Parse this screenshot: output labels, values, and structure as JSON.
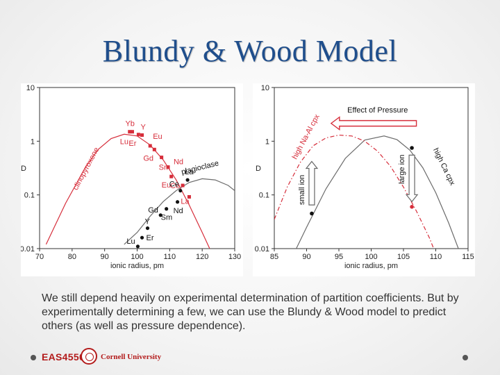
{
  "slide": {
    "title": "Blundy & Wood Model",
    "caption": "We still depend heavily on experimental determination of partition coefficients. But by experimentally determining a few, we can use the Blundy & Wood model to predict others (as well as pressure dependence).",
    "footer_course": "EAS4550",
    "footer_university": "Cornell University",
    "colors": {
      "title": "#1f4e8c",
      "accent_red": "#d62d3a",
      "curve_gray": "#6b6b6b",
      "footer_red": "#b31b1b"
    }
  },
  "chart_data": [
    {
      "type": "line",
      "xlabel": "ionic radius, pm",
      "ylabel": "D",
      "xlim": [
        70,
        130
      ],
      "ylim": [
        0.01,
        10
      ],
      "yscale": "log",
      "x_ticks": [
        "70",
        "80",
        "90",
        "100",
        "110",
        "120",
        "130"
      ],
      "y_ticks": [
        "10",
        "1",
        "0.1",
        "0.01"
      ],
      "series": [
        {
          "name": "clinopyroxene",
          "color": "#d62d3a",
          "curve": {
            "x": [
              72,
              78,
              84,
              88,
              92,
              96,
              100,
              104,
              108,
              112,
              116,
              120,
              124,
              125.5
            ],
            "y": [
              0.012,
              0.07,
              0.32,
              0.7,
              1.12,
              1.35,
              1.25,
              0.85,
              0.45,
              0.19,
              0.065,
              0.02,
              0.006,
              0.004
            ]
          },
          "points": [
            {
              "label": "Lu",
              "x": 97.7,
              "y": 1.5
            },
            {
              "label": "Yb",
              "x": 98.5,
              "y": 1.5
            },
            {
              "label": "Er",
              "x": 100.4,
              "y": 1.33
            },
            {
              "label": "Y",
              "x": 101.5,
              "y": 1.3
            },
            {
              "label": "Eu",
              "x": 104,
              "y": 0.82
            },
            {
              "label": "Gd",
              "x": 105.3,
              "y": 0.7
            },
            {
              "label": "Sm",
              "x": 107.5,
              "y": 0.5
            },
            {
              "label": "Nd",
              "x": 109.5,
              "y": 0.33
            },
            {
              "label": "Eu",
              "x": 110.5,
              "y": 0.22
            },
            {
              "label": "Ce",
              "x": 114,
              "y": 0.15
            },
            {
              "label": "La",
              "x": 116,
              "y": 0.092
            }
          ]
        },
        {
          "name": "plagioclase",
          "color": "#6b6b6b",
          "curve": {
            "x": [
              96,
              100,
              104,
              108,
              112,
              116,
              120,
              124,
              128,
              130
            ],
            "y": [
              0.012,
              0.02,
              0.04,
              0.075,
              0.12,
              0.17,
              0.2,
              0.19,
              0.15,
              0.12
            ]
          },
          "points": [
            {
              "label": "Lu",
              "x": 100.2,
              "y": 0.011
            },
            {
              "label": "Er",
              "x": 101.5,
              "y": 0.016
            },
            {
              "label": "Y",
              "x": 103.2,
              "y": 0.024
            },
            {
              "label": "Sm",
              "x": 109,
              "y": 0.055
            },
            {
              "label": "Gd",
              "x": 107.2,
              "y": 0.042
            },
            {
              "label": "Nd",
              "x": 112.4,
              "y": 0.074
            },
            {
              "label": "Ce",
              "x": 113.3,
              "y": 0.12
            },
            {
              "label": "La",
              "x": 115.5,
              "y": 0.19
            }
          ]
        }
      ],
      "annotations": [
        "clinopyroxene",
        "plagioclase"
      ]
    },
    {
      "type": "line",
      "xlabel": "ionic radius, pm",
      "ylabel": "D",
      "xlim": [
        85,
        115
      ],
      "ylim": [
        0.01,
        10
      ],
      "yscale": "log",
      "x_ticks": [
        "85",
        "90",
        "95",
        "100",
        "105",
        "110",
        "115"
      ],
      "y_ticks": [
        "10",
        "1",
        "0.1",
        "0.01"
      ],
      "series": [
        {
          "name": "high Ca cpx",
          "color": "#6b6b6b",
          "curve": {
            "x": [
              87.5,
              90,
              93,
              96,
              99,
              102,
              104,
              106,
              108,
              110,
              112,
              113.5
            ],
            "y": [
              0.006,
              0.025,
              0.13,
              0.48,
              1.05,
              1.25,
              1.07,
              0.68,
              0.32,
              0.11,
              0.03,
              0.01
            ]
          },
          "points": [
            {
              "label": "",
              "x": 90.8,
              "y": 0.045
            },
            {
              "label": "",
              "x": 106.3,
              "y": 0.75
            }
          ]
        },
        {
          "name": "high Na-Al cpx",
          "color": "#d62d3a",
          "dashed": true,
          "curve": {
            "x": [
              85,
              87,
              89,
              91,
              93,
              95,
              97,
              99,
              101,
              103,
              105,
              107,
              109,
              111
            ],
            "y": [
              0.035,
              0.14,
              0.4,
              0.82,
              1.15,
              1.3,
              1.25,
              1.0,
              0.65,
              0.34,
              0.14,
              0.05,
              0.016,
              0.004
            ]
          },
          "points": [
            {
              "label": "",
              "x": 106.3,
              "y": 0.06
            }
          ]
        }
      ],
      "annotations": [
        "Effect of Pressure",
        "small ion",
        "large ion",
        "high Na-Al cpx",
        "high Ca cpx"
      ]
    }
  ]
}
